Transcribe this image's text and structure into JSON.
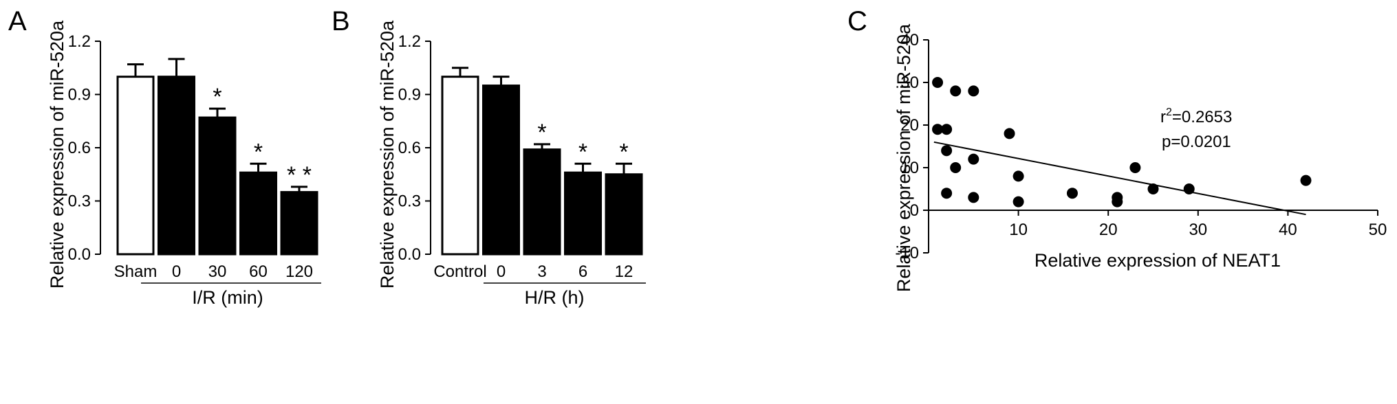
{
  "chart_data": [
    {
      "type": "bar",
      "panel_label": "A",
      "ylabel": "Relative expression of miR-520a",
      "yticks": [
        "0.0",
        "0.3",
        "0.6",
        "0.9",
        "1.2"
      ],
      "ylim": [
        0,
        1.2
      ],
      "categories": [
        "Sham",
        "0",
        "30",
        "60",
        "120"
      ],
      "values": [
        1.0,
        1.0,
        0.77,
        0.46,
        0.35
      ],
      "errors": [
        0.07,
        0.1,
        0.05,
        0.05,
        0.03
      ],
      "fill": [
        "white",
        "black",
        "black",
        "black",
        "black"
      ],
      "significance": [
        "",
        "",
        "*",
        "*",
        "* *"
      ],
      "group_label": "I/R (min)"
    },
    {
      "type": "bar",
      "panel_label": "B",
      "ylabel": "Relative expression of miR-520a",
      "yticks": [
        "0.0",
        "0.3",
        "0.6",
        "0.9",
        "1.2"
      ],
      "ylim": [
        0,
        1.2
      ],
      "categories": [
        "Control",
        "0",
        "3",
        "6",
        "12"
      ],
      "values": [
        1.0,
        0.95,
        0.59,
        0.46,
        0.45
      ],
      "errors": [
        0.05,
        0.05,
        0.03,
        0.05,
        0.06
      ],
      "fill": [
        "white",
        "black",
        "black",
        "black",
        "black"
      ],
      "significance": [
        "",
        "",
        "*",
        "*",
        "*"
      ],
      "group_label": "H/R (h)"
    },
    {
      "type": "scatter",
      "panel_label": "C",
      "xlabel": "Relative expression of NEAT1",
      "ylabel": "Relative expression of miR-520a",
      "xticks": [
        "10",
        "20",
        "30",
        "40",
        "50"
      ],
      "yticks": [
        "-10",
        "0",
        "10",
        "20",
        "30",
        "40"
      ],
      "xlim": [
        0,
        50
      ],
      "ylim": [
        -10,
        40
      ],
      "points": [
        {
          "x": 1,
          "y": 30
        },
        {
          "x": 1,
          "y": 19
        },
        {
          "x": 2,
          "y": 19
        },
        {
          "x": 2,
          "y": 14
        },
        {
          "x": 2,
          "y": 4
        },
        {
          "x": 3,
          "y": 28
        },
        {
          "x": 3,
          "y": 10
        },
        {
          "x": 5,
          "y": 28
        },
        {
          "x": 5,
          "y": 12
        },
        {
          "x": 5,
          "y": 3
        },
        {
          "x": 9,
          "y": 18
        },
        {
          "x": 10,
          "y": 8
        },
        {
          "x": 10,
          "y": 2
        },
        {
          "x": 16,
          "y": 4
        },
        {
          "x": 21,
          "y": 3
        },
        {
          "x": 21,
          "y": 2
        },
        {
          "x": 23,
          "y": 10
        },
        {
          "x": 25,
          "y": 5
        },
        {
          "x": 29,
          "y": 5
        },
        {
          "x": 42,
          "y": 7
        }
      ],
      "fit_line": {
        "x": [
          0.6,
          42
        ],
        "y": [
          16,
          -1
        ]
      },
      "r2_text": "r",
      "r2_sup": "2",
      "r2_value": "=0.2653",
      "p_text": "p=0.0201"
    }
  ]
}
